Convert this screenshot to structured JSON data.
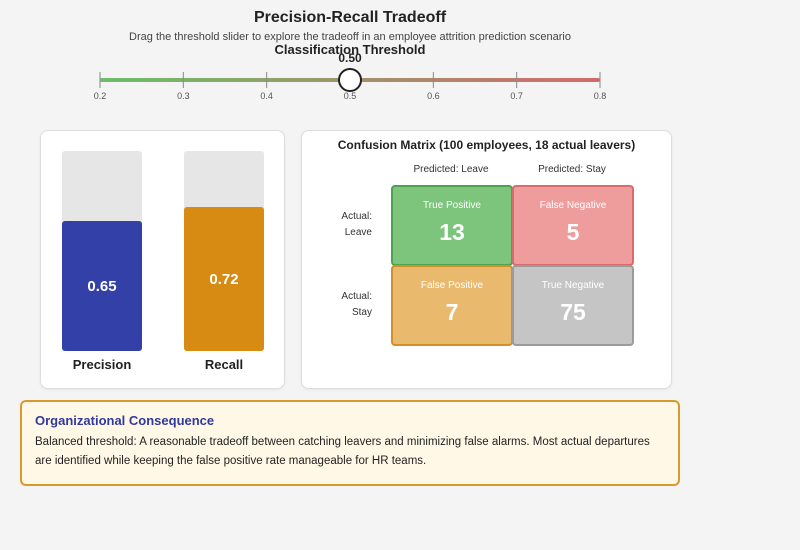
{
  "header": {
    "title": "Precision-Recall Tradeoff",
    "subtitle": "Drag the threshold slider to explore the tradeoff in an employee attrition prediction scenario"
  },
  "slider": {
    "label": "Classification Threshold",
    "value": 0.5,
    "value_text": "0.50",
    "min": 0.2,
    "max": 0.8,
    "ticks": [
      "0.2",
      "0.3",
      "0.4",
      "0.5",
      "0.6",
      "0.7",
      "0.8"
    ],
    "colors": {
      "low": "#6bbf6a",
      "high": "#d16a6a"
    }
  },
  "metrics": [
    {
      "name": "Precision",
      "value": 0.65,
      "value_text": "0.65",
      "color": "#3240a8"
    },
    {
      "name": "Recall",
      "value": 0.72,
      "value_text": "0.72",
      "color": "#d78b12"
    }
  ],
  "confusion_matrix": {
    "title": "Confusion Matrix (100 employees, 18 actual leavers)",
    "col_headers": [
      "Predicted: Leave",
      "Predicted: Stay"
    ],
    "row_headers": [
      {
        "line1": "Actual:",
        "line2": "Leave"
      },
      {
        "line1": "Actual:",
        "line2": "Stay"
      }
    ],
    "cells": [
      {
        "label": "True Positive",
        "value": "13",
        "bg": "#7dc47c",
        "border": "#4fa24f"
      },
      {
        "label": "False Negative",
        "value": "5",
        "bg": "#ef9c9c",
        "border": "#d86b6b"
      },
      {
        "label": "False Positive",
        "value": "7",
        "bg": "#e9ba6e",
        "border": "#d1912a"
      },
      {
        "label": "True Negative",
        "value": "75",
        "bg": "#c5c5c5",
        "border": "#9b9b9b"
      }
    ]
  },
  "consequence": {
    "title": "Organizational Consequence",
    "text": "Balanced threshold: A reasonable tradeoff between catching leavers and minimizing false alarms. Most actual departures are identified while keeping the false positive rate manageable for HR teams."
  }
}
